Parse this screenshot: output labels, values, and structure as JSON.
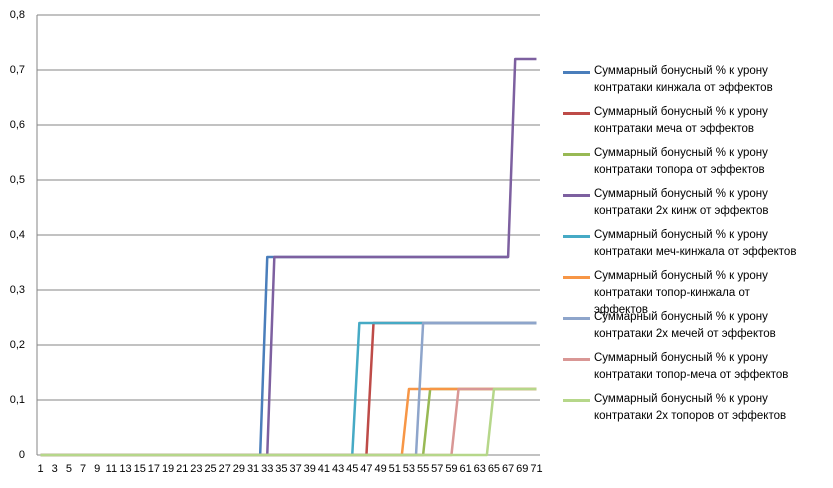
{
  "chart_data": {
    "type": "line",
    "categories": [
      1,
      null,
      3,
      null,
      5,
      null,
      7,
      null,
      9,
      null,
      11,
      null,
      13,
      null,
      15,
      null,
      17,
      null,
      19,
      null,
      21,
      null,
      23,
      null,
      25,
      null,
      27,
      null,
      29,
      null,
      31,
      null,
      33,
      null,
      35,
      null,
      37,
      null,
      39,
      null,
      41,
      null,
      43,
      null,
      45,
      null,
      47,
      null,
      49,
      null,
      51,
      null,
      53,
      null,
      55,
      null,
      57,
      null,
      59,
      null,
      61,
      null,
      63,
      null,
      65,
      null,
      67,
      null,
      69,
      null,
      71
    ],
    "ylim": [
      0,
      0.8
    ],
    "yticks": [
      0,
      {
        "value": 0.1,
        "label": "0,1"
      },
      {
        "value": 0.2,
        "label": "0,2"
      },
      {
        "value": 0.3,
        "label": "0,3"
      },
      {
        "value": 0.4,
        "label": "0,4"
      },
      {
        "value": 0.5,
        "label": "0,5"
      },
      {
        "value": 0.6,
        "label": "0,6"
      },
      {
        "value": 0.7,
        "label": "0,7"
      },
      {
        "value": 0.8,
        "label": "0,8"
      }
    ],
    "grid": true,
    "legend": "right",
    "series": [
      {
        "name": "Суммарный бонусный % к урону контратаки кинжала от эффектов",
        "color": "#4a7ebb",
        "values": [
          0,
          0,
          0,
          0,
          0,
          0,
          0,
          0,
          0,
          0,
          0,
          0,
          0,
          0,
          0,
          0,
          0,
          0,
          0,
          0,
          0,
          0,
          0,
          0,
          0,
          0,
          0,
          0,
          0,
          0,
          0,
          0,
          0.36,
          0.36,
          0.36,
          0.36,
          0.36,
          0.36,
          0.36,
          0.36,
          0.36,
          0.36,
          0.36,
          0.36,
          0.36,
          0.36,
          0.36,
          0.36,
          0.36,
          0.36,
          0.36,
          0.36,
          0.36,
          0.36,
          0.36,
          0.36,
          0.36,
          0.36,
          0.36,
          0.36,
          0.36,
          0.36,
          0.36,
          0.36,
          0.36,
          0.36,
          0.36,
          null,
          null,
          null,
          null
        ]
      },
      {
        "name": "Суммарный бонусный % к урону контратаки меча от эффектов",
        "color": "#be4b48",
        "values": [
          0,
          0,
          0,
          0,
          0,
          0,
          0,
          0,
          0,
          0,
          0,
          0,
          0,
          0,
          0,
          0,
          0,
          0,
          0,
          0,
          0,
          0,
          0,
          0,
          0,
          0,
          0,
          0,
          0,
          0,
          0,
          0,
          0,
          0,
          0,
          0,
          0,
          0,
          0,
          0,
          0,
          0,
          0,
          0,
          0,
          0,
          0,
          0.24,
          0.24,
          0.24,
          0.24,
          0.24,
          0.24,
          0.24,
          0.24,
          0.24,
          0.24,
          0.24,
          0.24,
          0.24,
          0.24,
          0.24,
          0.24,
          0.24,
          0.24,
          0.24,
          0.24,
          0.24,
          0.24,
          0.24,
          0.24
        ]
      },
      {
        "name": "Суммарный бонусный % к урону контратаки топора от эффектов",
        "color": "#98b954",
        "values": [
          0,
          0,
          0,
          0,
          0,
          0,
          0,
          0,
          0,
          0,
          0,
          0,
          0,
          0,
          0,
          0,
          0,
          0,
          0,
          0,
          0,
          0,
          0,
          0,
          0,
          0,
          0,
          0,
          0,
          0,
          0,
          0,
          0,
          0,
          0,
          0,
          0,
          0,
          0,
          0,
          0,
          0,
          0,
          0,
          0,
          0,
          0,
          0,
          0,
          0,
          0,
          0,
          0,
          0,
          0,
          0.12,
          0.12,
          0.12,
          0.12,
          0.12,
          0.12,
          0.12,
          0.12,
          0.12,
          0.12,
          0.12,
          0.12,
          0.12,
          0.12,
          0.12,
          0.12
        ]
      },
      {
        "name": "Суммарный бонусный % к урону контратаки 2х кинж от эффектов",
        "color": "#7d60a0",
        "values": [
          0,
          0,
          0,
          0,
          0,
          0,
          0,
          0,
          0,
          0,
          0,
          0,
          0,
          0,
          0,
          0,
          0,
          0,
          0,
          0,
          0,
          0,
          0,
          0,
          0,
          0,
          0,
          0,
          0,
          0,
          0,
          0,
          0,
          0.36,
          0.36,
          0.36,
          0.36,
          0.36,
          0.36,
          0.36,
          0.36,
          0.36,
          0.36,
          0.36,
          0.36,
          0.36,
          0.36,
          0.36,
          0.36,
          0.36,
          0.36,
          0.36,
          0.36,
          0.36,
          0.36,
          0.36,
          0.36,
          0.36,
          0.36,
          0.36,
          0.36,
          0.36,
          0.36,
          0.36,
          0.36,
          0.36,
          0.36,
          0.72,
          0.72,
          0.72,
          0.72
        ]
      },
      {
        "name": "Суммарный бонусный % к урону контратаки меч-кинжала от эффектов",
        "color": "#46aac5",
        "values": [
          0,
          0,
          0,
          0,
          0,
          0,
          0,
          0,
          0,
          0,
          0,
          0,
          0,
          0,
          0,
          0,
          0,
          0,
          0,
          0,
          0,
          0,
          0,
          0,
          0,
          0,
          0,
          0,
          0,
          0,
          0,
          0,
          0,
          0,
          0,
          0,
          0,
          0,
          0,
          0,
          0,
          0,
          0,
          0,
          0,
          0.24,
          0.24,
          0.24,
          0.24,
          0.24,
          0.24,
          0.24,
          0.24,
          0.24,
          0.24,
          0.24,
          0.24,
          0.24,
          0.24,
          0.24,
          0.24,
          0.24,
          0.24,
          0.24,
          0.24,
          0.24,
          0.24,
          0.24,
          0.24,
          0.24,
          0.24
        ]
      },
      {
        "name": "Суммарный бонусный % к урону контратаки топор-кинжала от эффектов",
        "color": "#f79646",
        "values": [
          0,
          0,
          0,
          0,
          0,
          0,
          0,
          0,
          0,
          0,
          0,
          0,
          0,
          0,
          0,
          0,
          0,
          0,
          0,
          0,
          0,
          0,
          0,
          0,
          0,
          0,
          0,
          0,
          0,
          0,
          0,
          0,
          0,
          0,
          0,
          0,
          0,
          0,
          0,
          0,
          0,
          0,
          0,
          0,
          0,
          0,
          0,
          0,
          0,
          0,
          0,
          0,
          0.12,
          0.12,
          0.12,
          0.12,
          0.12,
          0.12,
          0.12,
          0.12,
          0.12,
          0.12,
          0.12,
          0.12,
          0.12,
          0.12,
          0.12,
          0.12,
          0.12,
          0.12,
          0.12
        ]
      },
      {
        "name": "Суммарный бонусный % к урону контратаки 2х мечей от эффектов",
        "color": "#8ea5cb",
        "values": [
          0,
          0,
          0,
          0,
          0,
          0,
          0,
          0,
          0,
          0,
          0,
          0,
          0,
          0,
          0,
          0,
          0,
          0,
          0,
          0,
          0,
          0,
          0,
          0,
          0,
          0,
          0,
          0,
          0,
          0,
          0,
          0,
          0,
          0,
          0,
          0,
          0,
          0,
          0,
          0,
          0,
          0,
          0,
          0,
          0,
          0,
          0,
          0,
          0,
          0,
          0,
          0,
          0,
          0,
          0.24,
          0.24,
          0.24,
          0.24,
          0.24,
          0.24,
          0.24,
          0.24,
          0.24,
          0.24,
          0.24,
          0.24,
          0.24,
          0.24,
          0.24,
          0.24,
          0.24
        ]
      },
      {
        "name": "Суммарный бонусный % к урону контратаки топор-меча от эффектов",
        "color": "#d99795",
        "values": [
          0,
          0,
          0,
          0,
          0,
          0,
          0,
          0,
          0,
          0,
          0,
          0,
          0,
          0,
          0,
          0,
          0,
          0,
          0,
          0,
          0,
          0,
          0,
          0,
          0,
          0,
          0,
          0,
          0,
          0,
          0,
          0,
          0,
          0,
          0,
          0,
          0,
          0,
          0,
          0,
          0,
          0,
          0,
          0,
          0,
          0,
          0,
          0,
          0,
          0,
          0,
          0,
          0,
          0,
          0,
          0,
          0,
          0,
          0,
          0.12,
          0.12,
          0.12,
          0.12,
          0.12,
          0.12,
          0.12,
          0.12,
          0.12,
          0.12,
          0.12,
          0.12
        ]
      },
      {
        "name": "Суммарный бонусный % к урону контратаки 2х топоров от эффектов",
        "color": "#b6d78a",
        "values": [
          0,
          0,
          0,
          0,
          0,
          0,
          0,
          0,
          0,
          0,
          0,
          0,
          0,
          0,
          0,
          0,
          0,
          0,
          0,
          0,
          0,
          0,
          0,
          0,
          0,
          0,
          0,
          0,
          0,
          0,
          0,
          0,
          0,
          0,
          0,
          0,
          0,
          0,
          0,
          0,
          0,
          0,
          0,
          0,
          0,
          0,
          0,
          0,
          0,
          0,
          0,
          0,
          0,
          0,
          0,
          0,
          0,
          0,
          0,
          0,
          0,
          0,
          0,
          0,
          0.12,
          0.12,
          0.12,
          0.12,
          0.12,
          0.12,
          0.12
        ]
      }
    ]
  }
}
